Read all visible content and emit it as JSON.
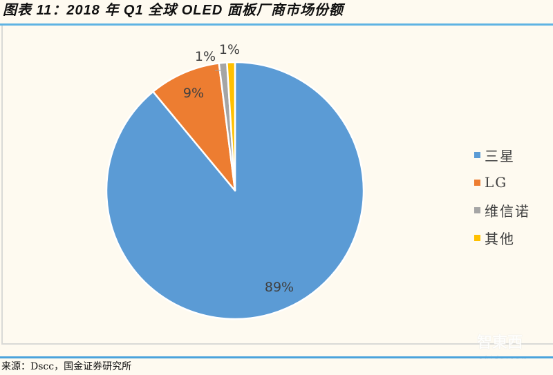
{
  "header": {
    "title": "图表 11：2018 年 Q1 全球 OLED 面板厂商市场份额"
  },
  "footer": {
    "source": "来源：Dscc，国金证券研究所"
  },
  "watermark": {
    "logo": "智東西",
    "sub": "zhidx.com"
  },
  "legend": {
    "items": [
      {
        "label": "三星",
        "color": "#5b9bd5"
      },
      {
        "label": "LG",
        "color": "#ed7d31"
      },
      {
        "label": "维信诺",
        "color": "#a5a5a5"
      },
      {
        "label": "其他",
        "color": "#ffc000"
      }
    ]
  },
  "chart_data": {
    "type": "pie",
    "title": "图表 11：2018 年 Q1 全球 OLED 面板厂商市场份额",
    "categories": [
      "三星",
      "LG",
      "维信诺",
      "其他"
    ],
    "values": [
      89,
      9,
      1,
      1
    ],
    "labels": [
      "89%",
      "9%",
      "1%",
      "1%"
    ],
    "colors": [
      "#5b9bd5",
      "#ed7d31",
      "#a5a5a5",
      "#ffc000"
    ],
    "start_angle_deg": 0,
    "direction": "clockwise",
    "legend_position": "right",
    "source": "来源：Dscc，国金证券研究所"
  }
}
